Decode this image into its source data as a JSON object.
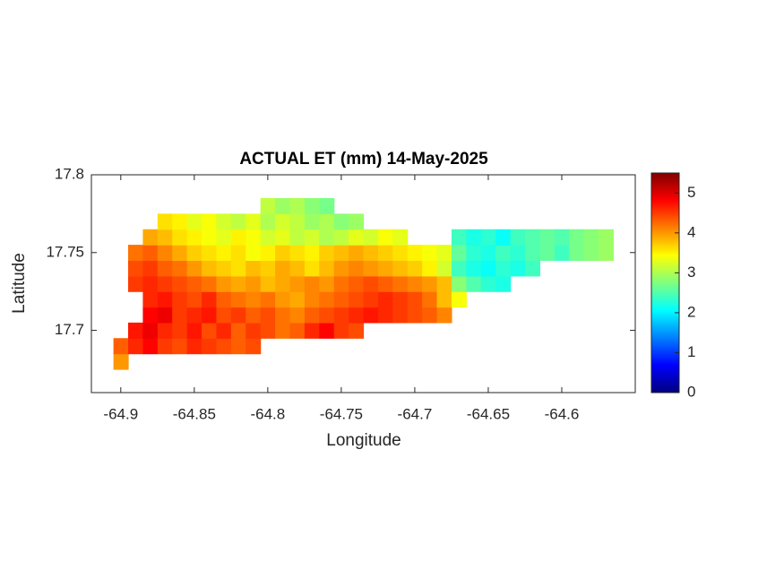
{
  "chart_data": {
    "type": "heatmap",
    "title": "ACTUAL ET (mm) 14-May-2025",
    "xlabel": "Longitude",
    "ylabel": "Latitude",
    "xlim": [
      -64.92,
      -64.55
    ],
    "ylim": [
      17.66,
      17.8
    ],
    "xticks": [
      -64.9,
      -64.85,
      -64.8,
      -64.75,
      -64.7,
      -64.65,
      -64.6
    ],
    "yticks": [
      17.7,
      17.75,
      17.8
    ],
    "colormap": "jet",
    "clim": [
      0,
      5.5
    ],
    "cticks": [
      0,
      1,
      2,
      3,
      4,
      5
    ],
    "x": [
      -64.9,
      -64.89,
      -64.88,
      -64.87,
      -64.86,
      -64.85,
      -64.84,
      -64.83,
      -64.82,
      -64.81,
      -64.8,
      -64.79,
      -64.78,
      -64.77,
      -64.76,
      -64.75,
      -64.74,
      -64.73,
      -64.72,
      -64.71,
      -64.7,
      -64.69,
      -64.68,
      -64.67,
      -64.66,
      -64.65,
      -64.64,
      -64.63,
      -64.62,
      -64.61,
      -64.6,
      -64.59,
      -64.58,
      -64.57,
      -64.56
    ],
    "y": [
      17.68,
      17.69,
      17.7,
      17.71,
      17.72,
      17.73,
      17.74,
      17.75,
      17.76,
      17.77,
      17.78
    ],
    "values": [
      [
        4.0,
        null,
        null,
        null,
        null,
        null,
        null,
        null,
        null,
        null,
        null,
        null,
        null,
        null,
        null,
        null,
        null,
        null,
        null,
        null,
        null,
        null,
        null,
        null,
        null,
        null,
        null,
        null,
        null,
        null,
        null,
        null,
        null,
        null,
        null
      ],
      [
        4.3,
        4.6,
        4.8,
        4.5,
        4.4,
        4.6,
        4.5,
        4.4,
        4.3,
        4.4,
        null,
        null,
        null,
        null,
        null,
        null,
        null,
        null,
        null,
        null,
        null,
        null,
        null,
        null,
        null,
        null,
        null,
        null,
        null,
        null,
        null,
        null,
        null,
        null,
        null
      ],
      [
        null,
        4.7,
        4.9,
        4.6,
        4.5,
        4.7,
        4.4,
        4.6,
        4.3,
        4.5,
        4.4,
        4.2,
        4.3,
        4.6,
        4.8,
        4.5,
        4.4,
        null,
        null,
        null,
        null,
        null,
        null,
        null,
        null,
        null,
        null,
        null,
        null,
        null,
        null,
        null,
        null,
        null,
        null
      ],
      [
        null,
        null,
        4.8,
        4.9,
        4.5,
        4.6,
        4.7,
        4.4,
        4.5,
        4.3,
        4.4,
        4.2,
        4.1,
        4.3,
        4.4,
        4.5,
        4.6,
        4.7,
        4.6,
        4.5,
        4.4,
        4.3,
        4.1,
        null,
        null,
        null,
        null,
        null,
        null,
        null,
        null,
        null,
        null,
        null,
        null
      ],
      [
        null,
        null,
        4.6,
        4.7,
        4.5,
        4.4,
        4.6,
        4.3,
        4.2,
        4.1,
        4.2,
        4.0,
        3.9,
        4.1,
        4.2,
        4.3,
        4.4,
        4.5,
        4.6,
        4.5,
        4.4,
        4.2,
        3.8,
        3.4,
        null,
        null,
        null,
        null,
        null,
        null,
        null,
        null,
        null,
        null,
        null
      ],
      [
        null,
        4.5,
        4.6,
        4.5,
        4.4,
        4.3,
        4.2,
        4.0,
        3.9,
        4.0,
        3.8,
        3.9,
        4.0,
        4.1,
        4.0,
        4.2,
        4.3,
        4.4,
        4.3,
        4.2,
        4.1,
        4.0,
        3.8,
        2.8,
        2.5,
        2.3,
        2.2,
        null,
        null,
        null,
        null,
        null,
        null,
        null,
        null
      ],
      [
        null,
        4.4,
        4.5,
        4.3,
        4.2,
        4.0,
        3.8,
        3.7,
        3.6,
        3.8,
        3.7,
        3.9,
        3.8,
        3.6,
        3.8,
        4.0,
        4.1,
        4.0,
        3.9,
        3.8,
        3.7,
        3.5,
        3.2,
        2.4,
        2.2,
        2.1,
        2.3,
        2.2,
        2.4,
        null,
        null,
        null,
        null,
        null,
        null
      ],
      [
        null,
        4.2,
        4.3,
        4.1,
        3.9,
        3.7,
        3.6,
        3.5,
        3.6,
        3.4,
        3.5,
        3.7,
        3.6,
        3.5,
        3.7,
        3.8,
        3.9,
        3.8,
        3.7,
        3.6,
        3.5,
        3.4,
        3.3,
        2.6,
        2.3,
        2.2,
        2.4,
        2.3,
        2.5,
        2.6,
        2.4,
        2.7,
        2.8,
        2.9,
        null
      ],
      [
        null,
        null,
        3.9,
        3.8,
        3.6,
        3.5,
        3.4,
        3.3,
        3.5,
        3.4,
        3.2,
        3.3,
        3.1,
        3.2,
        3.0,
        3.1,
        3.3,
        3.2,
        3.4,
        3.3,
        null,
        null,
        null,
        2.4,
        2.2,
        2.3,
        2.1,
        2.4,
        2.5,
        2.6,
        2.5,
        2.7,
        2.8,
        2.9,
        null
      ],
      [
        null,
        null,
        null,
        3.6,
        3.5,
        3.3,
        3.4,
        3.2,
        3.1,
        3.3,
        3.0,
        3.2,
        3.1,
        2.9,
        3.0,
        2.8,
        2.9,
        null,
        null,
        null,
        null,
        null,
        null,
        null,
        null,
        null,
        null,
        null,
        null,
        null,
        null,
        null,
        null,
        null,
        null
      ],
      [
        null,
        null,
        null,
        null,
        null,
        null,
        null,
        null,
        null,
        null,
        3.1,
        2.9,
        3.0,
        2.8,
        2.7,
        null,
        null,
        null,
        null,
        null,
        null,
        null,
        null,
        null,
        null,
        null,
        null,
        null,
        null,
        null,
        null,
        null,
        null,
        null,
        null
      ]
    ]
  }
}
